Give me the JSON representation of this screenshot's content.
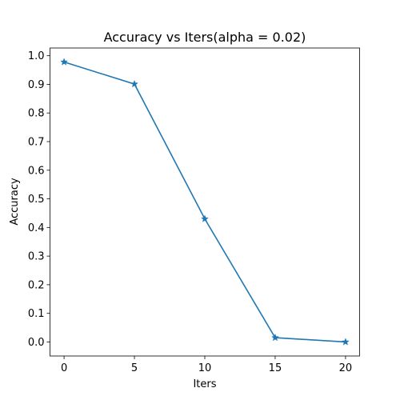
{
  "chart_data": {
    "type": "line",
    "title": "Accuracy vs Iters(alpha = 0.02)",
    "xlabel": "Iters",
    "ylabel": "Accuracy",
    "x": [
      0,
      5,
      10,
      15,
      20
    ],
    "series": [
      {
        "values": [
          0.978,
          0.901,
          0.43,
          0.015,
          0.0
        ],
        "color": "#1f77b4",
        "marker": "star"
      }
    ],
    "xticks": [
      "0",
      "5",
      "10",
      "15",
      "20"
    ],
    "yticks": [
      "0.0",
      "0.1",
      "0.2",
      "0.3",
      "0.4",
      "0.5",
      "0.6",
      "0.7",
      "0.8",
      "0.9",
      "1.0"
    ],
    "xlim": [
      -1,
      21
    ],
    "ylim": [
      -0.049,
      1.027
    ],
    "grid": false
  }
}
